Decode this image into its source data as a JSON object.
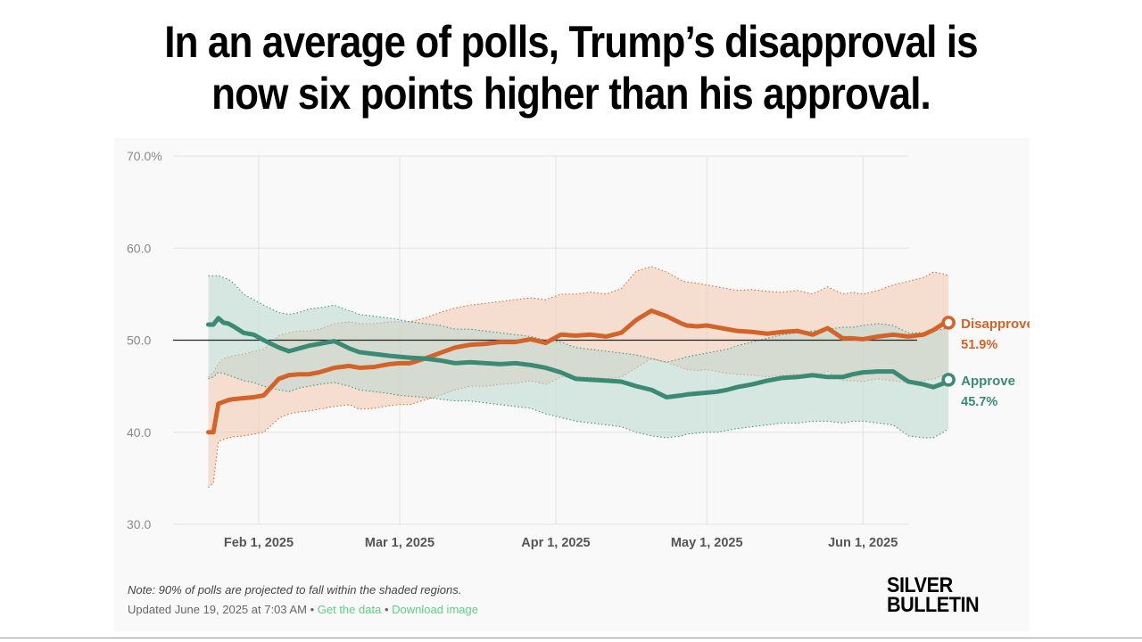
{
  "headline": {
    "line1": "In an average of polls, Trump’s disapproval is",
    "line2": "now six points higher than his approval."
  },
  "colors": {
    "disapprove": "#d2642a",
    "approve": "#3b8a74",
    "disapprove_band": "#f2c9ae",
    "approve_band": "#b9d8cf"
  },
  "chart_data": {
    "type": "line",
    "title": "",
    "xlabel": "",
    "ylabel": "",
    "ylim": [
      30,
      70
    ],
    "y_ticks": [
      "70.0%",
      "60.0",
      "50.0",
      "40.0",
      "30.0"
    ],
    "y_tick_values": [
      70,
      60,
      50,
      40,
      30
    ],
    "x_range_days": [
      -7,
      139
    ],
    "x_ticks": [
      {
        "label": "Feb 1, 2025",
        "day": 10
      },
      {
        "label": "Mar 1, 2025",
        "day": 38
      },
      {
        "label": "Apr 1, 2025",
        "day": 69
      },
      {
        "label": "May 1, 2025",
        "day": 99
      },
      {
        "label": "Jun 1, 2025",
        "day": 130
      }
    ],
    "reference_line": 50,
    "shaded_note": "90% of polls projected within shaded regions",
    "series": [
      {
        "name": "Disapprove",
        "end_label": "Disapprove",
        "end_value": "51.9%",
        "x": [
          0,
          1,
          2,
          3,
          4,
          5,
          7,
          9,
          11,
          14,
          16,
          18,
          20,
          22,
          25,
          28,
          30,
          33,
          36,
          38,
          40,
          43,
          46,
          49,
          52,
          55,
          58,
          61,
          64,
          67,
          70,
          73,
          76,
          79,
          82,
          85,
          88,
          91,
          94,
          95,
          97,
          99,
          101,
          103,
          105,
          108,
          111,
          114,
          117,
          120,
          123,
          126,
          128,
          130,
          133,
          136,
          139,
          142,
          144,
          146,
          147
        ],
        "values": [
          40.0,
          40.0,
          43.1,
          43.3,
          43.5,
          43.6,
          43.7,
          43.8,
          44.0,
          45.8,
          46.2,
          46.3,
          46.3,
          46.5,
          47.0,
          47.2,
          47.0,
          47.1,
          47.4,
          47.5,
          47.5,
          48.0,
          48.6,
          49.2,
          49.5,
          49.6,
          49.8,
          49.8,
          50.1,
          49.7,
          50.6,
          50.5,
          50.6,
          50.4,
          50.8,
          52.2,
          53.2,
          52.6,
          51.8,
          51.6,
          51.5,
          51.6,
          51.4,
          51.2,
          51.0,
          50.9,
          50.7,
          50.9,
          51.0,
          50.6,
          51.3,
          50.2,
          50.2,
          50.1,
          50.4,
          50.6,
          50.4,
          50.6,
          51.1,
          51.8,
          51.9
        ],
        "upper": [
          46.0,
          46.5,
          47.5,
          48.0,
          48.2,
          48.3,
          48.5,
          48.8,
          49.0,
          50.5,
          50.8,
          51.0,
          51.0,
          51.2,
          51.8,
          52.0,
          51.8,
          51.8,
          52.0,
          52.0,
          52.0,
          52.4,
          53.0,
          53.5,
          53.8,
          54.0,
          54.2,
          54.4,
          54.6,
          54.4,
          55.0,
          55.0,
          55.2,
          55.0,
          55.6,
          57.5,
          58.0,
          57.4,
          56.5,
          56.3,
          56.2,
          56.0,
          55.8,
          55.6,
          55.4,
          55.5,
          55.3,
          55.2,
          55.4,
          55.0,
          55.8,
          55.0,
          55.2,
          55.0,
          55.4,
          56.0,
          56.4,
          56.8,
          57.4,
          57.2,
          57.0
        ],
        "lower": [
          34.0,
          34.5,
          39.0,
          39.2,
          39.4,
          39.5,
          39.6,
          39.8,
          40.0,
          41.5,
          42.0,
          42.2,
          42.3,
          42.5,
          42.8,
          43.0,
          42.5,
          42.6,
          42.9,
          43.0,
          43.0,
          43.5,
          44.0,
          44.6,
          45.0,
          45.0,
          45.2,
          45.3,
          45.6,
          45.2,
          46.0,
          46.0,
          46.0,
          45.8,
          46.0,
          47.0,
          48.0,
          47.6,
          47.0,
          46.8,
          46.7,
          46.8,
          46.6,
          46.4,
          46.3,
          46.2,
          46.0,
          46.2,
          46.3,
          46.0,
          46.6,
          45.6,
          45.6,
          45.5,
          45.8,
          45.6,
          45.4,
          45.6,
          45.8,
          46.2,
          46.4
        ]
      },
      {
        "name": "Approve",
        "end_label": "Approve",
        "end_value": "45.7%",
        "x": [
          0,
          1,
          2,
          3,
          4,
          5,
          7,
          9,
          11,
          14,
          16,
          18,
          20,
          22,
          25,
          28,
          30,
          33,
          36,
          38,
          40,
          43,
          46,
          49,
          52,
          55,
          58,
          61,
          64,
          67,
          70,
          73,
          76,
          79,
          82,
          85,
          88,
          91,
          94,
          95,
          97,
          99,
          101,
          103,
          105,
          108,
          111,
          114,
          117,
          120,
          123,
          126,
          128,
          130,
          133,
          136,
          139,
          142,
          144,
          146,
          147
        ],
        "values": [
          51.7,
          51.7,
          52.4,
          51.9,
          51.8,
          51.5,
          50.8,
          50.6,
          50.0,
          49.2,
          48.8,
          49.1,
          49.4,
          49.6,
          49.9,
          49.1,
          48.7,
          48.5,
          48.3,
          48.2,
          48.1,
          48.0,
          47.8,
          47.5,
          47.6,
          47.5,
          47.4,
          47.5,
          47.3,
          47.0,
          46.5,
          45.8,
          45.7,
          45.6,
          45.5,
          45.0,
          44.6,
          43.8,
          44.0,
          44.1,
          44.2,
          44.3,
          44.4,
          44.6,
          44.9,
          45.2,
          45.6,
          45.9,
          46.0,
          46.2,
          46.0,
          46.0,
          46.3,
          46.5,
          46.6,
          46.6,
          45.5,
          45.2,
          44.9,
          45.3,
          45.7
        ],
        "upper": [
          57.0,
          57.0,
          57.0,
          56.8,
          56.6,
          56.2,
          55.0,
          54.4,
          53.8,
          53.0,
          52.8,
          53.0,
          53.4,
          53.5,
          53.8,
          53.2,
          52.8,
          52.6,
          52.4,
          52.2,
          52.0,
          51.8,
          51.6,
          51.2,
          51.2,
          51.0,
          50.8,
          50.6,
          50.4,
          50.0,
          49.8,
          49.2,
          49.0,
          48.8,
          48.6,
          48.4,
          48.0,
          47.6,
          48.0,
          48.2,
          48.4,
          48.6,
          48.8,
          49.0,
          49.4,
          49.8,
          50.2,
          50.6,
          50.8,
          51.0,
          51.2,
          51.4,
          51.4,
          51.6,
          51.8,
          51.6,
          50.8,
          50.8,
          51.0,
          51.2,
          51.4
        ],
        "lower": [
          45.8,
          46.0,
          46.5,
          46.4,
          46.2,
          46.0,
          45.6,
          45.4,
          45.0,
          44.6,
          44.4,
          44.8,
          45.0,
          45.2,
          45.4,
          45.0,
          44.6,
          44.4,
          44.2,
          44.0,
          43.9,
          43.8,
          43.6,
          43.4,
          43.4,
          43.2,
          43.0,
          42.8,
          42.6,
          42.0,
          41.6,
          41.2,
          41.0,
          40.8,
          40.6,
          40.0,
          39.6,
          39.4,
          39.6,
          39.8,
          39.9,
          40.0,
          40.0,
          40.2,
          40.4,
          40.6,
          40.8,
          41.0,
          41.0,
          41.2,
          41.2,
          41.0,
          41.2,
          41.2,
          41.0,
          40.8,
          39.6,
          39.4,
          39.4,
          40.0,
          40.4
        ]
      }
    ]
  },
  "footer": {
    "note": "Note: 90% of polls are projected to fall within the shaded regions.",
    "updated": "Updated June 19, 2025 at 7:03 AM",
    "separator": "•",
    "get_data": "Get the data",
    "download": "Download image",
    "brand_line1": "SILVER",
    "brand_line2": "BULLETIN"
  }
}
